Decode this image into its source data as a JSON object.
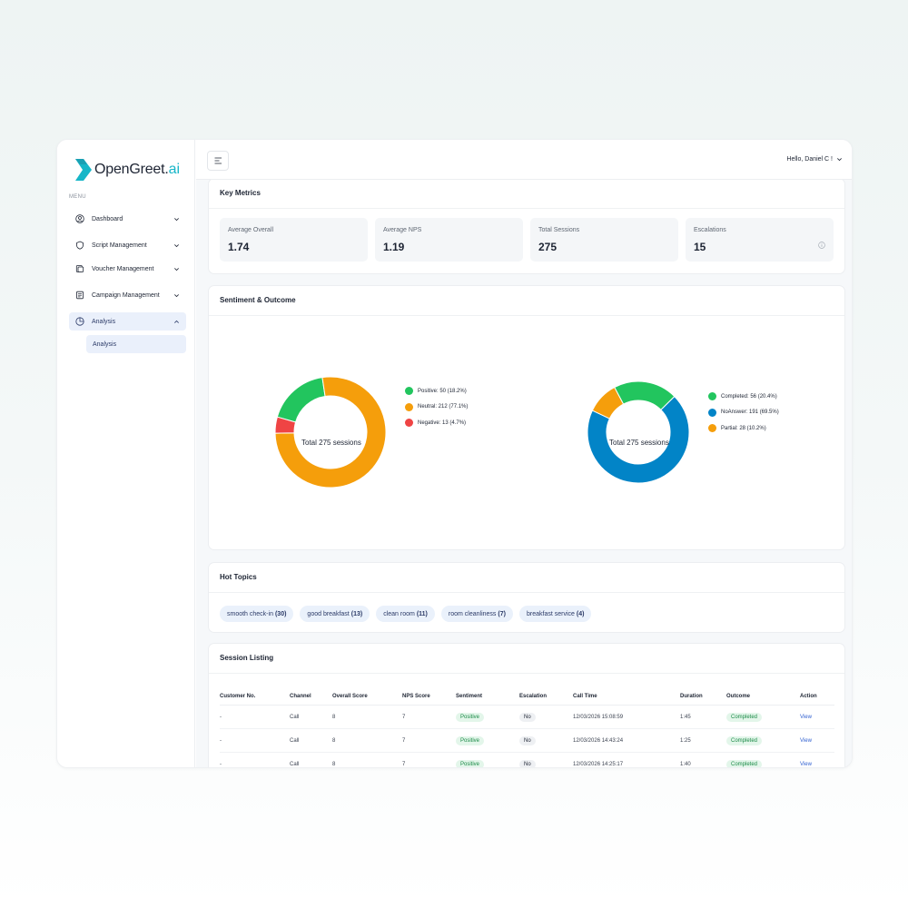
{
  "app": {
    "logo_main": "OpenGreet.",
    "logo_accent": "ai",
    "menu_caption": "MENU"
  },
  "sidebar": {
    "items": [
      {
        "label": "Dashboard",
        "icon": "user-circle-icon"
      },
      {
        "label": "Script Management",
        "icon": "shield-icon"
      },
      {
        "label": "Voucher Management",
        "icon": "voucher-icon"
      },
      {
        "label": "Campaign Management",
        "icon": "campaign-icon"
      },
      {
        "label": "Analysis",
        "icon": "pie-chart-icon"
      }
    ],
    "sub_items": [
      {
        "label": "Analysis"
      }
    ]
  },
  "header": {
    "greeting": "Hello, Daniel C !"
  },
  "key_metrics": {
    "title": "Key Metrics",
    "items": [
      {
        "label": "Average Overall",
        "value": "1.74"
      },
      {
        "label": "Average NPS",
        "value": "1.19"
      },
      {
        "label": "Total Sessions",
        "value": "275"
      },
      {
        "label": "Escalations",
        "value": "15"
      }
    ]
  },
  "sentiment_outcome": {
    "title": "Sentiment & Outcome"
  },
  "chart_data": [
    {
      "type": "pie",
      "center_label": "Total 275 sessions",
      "slices": [
        {
          "label": "Positive: 50 (18.2%)",
          "value": 50,
          "color": "#22c55e"
        },
        {
          "label": "Neutral: 212 (77.1%)",
          "value": 212,
          "color": "#f59e0b"
        },
        {
          "label": "Negative: 13 (4.7%)",
          "value": 13,
          "color": "#ef4444"
        }
      ]
    },
    {
      "type": "pie",
      "center_label": "Total 275 sessions",
      "slices": [
        {
          "label": "Completed: 56 (20.4%)",
          "value": 56,
          "color": "#22c55e"
        },
        {
          "label": "NoAnswer: 191 (69.5%)",
          "value": 191,
          "color": "#0284c7"
        },
        {
          "label": "Partial: 28 (10.2%)",
          "value": 28,
          "color": "#f59e0b"
        }
      ]
    }
  ],
  "hot_topics": {
    "title": "Hot Topics",
    "tags": [
      {
        "label": "smooth check-in",
        "count": "(30)"
      },
      {
        "label": "good breakfast",
        "count": "(13)"
      },
      {
        "label": "clean room",
        "count": "(11)"
      },
      {
        "label": "room cleanliness",
        "count": "(7)"
      },
      {
        "label": "breakfast service",
        "count": "(4)"
      }
    ]
  },
  "session_listing": {
    "title": "Session Listing",
    "columns": [
      "Customer No.",
      "Channel",
      "Overall Score",
      "NPS Score",
      "Sentiment",
      "Escalation",
      "Call Time",
      "Duration",
      "Outcome",
      "Action"
    ],
    "rows": [
      [
        "-",
        "Call",
        "8",
        "7",
        "Positive",
        "No",
        "12/03/2026 15:08:59",
        "1:45",
        "Completed",
        "View"
      ],
      [
        "-",
        "Call",
        "8",
        "7",
        "Positive",
        "No",
        "12/03/2026 14:43:24",
        "1:25",
        "Completed",
        "View"
      ],
      [
        "-",
        "Call",
        "8",
        "7",
        "Positive",
        "No",
        "12/03/2026 14:25:17",
        "1:40",
        "Completed",
        "View"
      ]
    ]
  },
  "colors": {
    "accent": "#17b6c8",
    "brand_dark": "#1d2433",
    "green": "#22c55e",
    "orange": "#f59e0b",
    "red": "#ef4444",
    "blue": "#0284c7"
  }
}
